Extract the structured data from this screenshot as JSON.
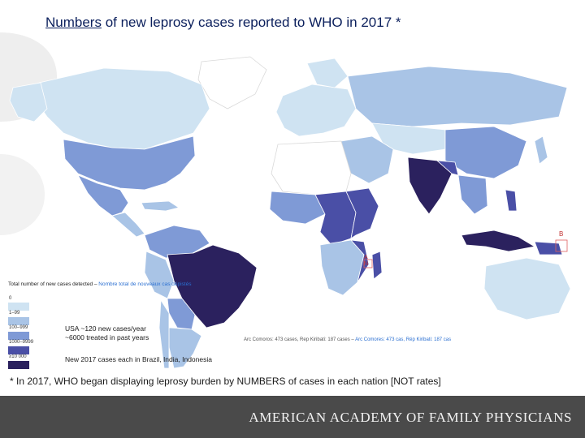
{
  "slide": {
    "title_underlined": "Numbers",
    "title_rest": " of new leprosy cases reported to WHO in 2017 *"
  },
  "legend": {
    "title": "Total number of new cases detected",
    "title_alt": "Nombre total de nouveaux cas dépistés",
    "classes": [
      {
        "label": "0",
        "color": "#cfe3f2"
      },
      {
        "label": "1–99",
        "color": "#a9c4e6"
      },
      {
        "label": "100–999",
        "color": "#7f9ad6"
      },
      {
        "label": "1000–9999",
        "color": "#4a4fa6"
      },
      {
        "label": "≥10 000",
        "color": "#2b215e"
      }
    ],
    "no_data_color": "#ffffff"
  },
  "annotations": {
    "usa_line1": "USA ~120 new cases/year",
    "usa_line2": "~6000 treated in past years",
    "brazil_india_indonesia": "New 2017 cases each in Brazil, India, Indonesia",
    "footnote": "*  In 2017, WHO began displaying leprosy burden by NUMBERS of cases in each nation [NOT rates]",
    "inset_notes": "Arc Comoros: 473 cases, Rep Kiribati: 187 cases – ",
    "inset_notes_alt": "Arc Comores: 473 cas, Rép Kiribati: 187 cas",
    "inset_label_b": "B",
    "inset_label_a": "A",
    "inset_label_n": "N"
  },
  "footer": {
    "org": "AMERICAN ACADEMY OF FAMILY PHYSICIANS"
  }
}
